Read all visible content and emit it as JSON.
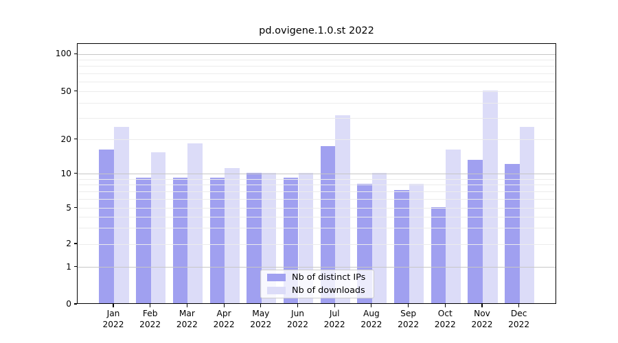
{
  "figure": {
    "title": "pd.ovigene.1.0.st 2022"
  },
  "chart_data": {
    "type": "bar",
    "title": "pd.ovigene.1.0.st 2022",
    "categories": [
      "Jan 2022",
      "Feb 2022",
      "Mar 2022",
      "Apr 2022",
      "May 2022",
      "Jun 2022",
      "Jul 2022",
      "Aug 2022",
      "Sep 2022",
      "Oct 2022",
      "Nov 2022",
      "Dec 2022"
    ],
    "series": [
      {
        "name": "Nb of distinct IPs",
        "color": "#a0a0f0",
        "values": [
          16,
          9,
          9,
          9,
          10,
          9,
          17,
          8,
          7,
          5,
          13,
          12
        ]
      },
      {
        "name": "Nb of downloads",
        "color": "#dcdcf8",
        "values": [
          25,
          15,
          18,
          11,
          10,
          10,
          31,
          10,
          8,
          16,
          50,
          25
        ]
      }
    ],
    "y_axis": {
      "scale": "symlog",
      "tick_values": [
        100,
        50,
        20,
        10,
        5,
        2,
        1,
        0
      ],
      "tick_labels": [
        "100",
        "50",
        "20",
        "10",
        "5",
        "2",
        "1",
        "0"
      ],
      "ylim": [
        0,
        121
      ]
    },
    "x_axis": {
      "tick_labels_line2": "2022"
    },
    "grid": {
      "major_values": [
        1,
        10,
        100
      ],
      "minor_values": [
        2,
        3,
        4,
        5,
        6,
        7,
        8,
        9,
        20,
        30,
        40,
        50,
        60,
        70,
        80,
        90
      ],
      "major_color": "#c6c6c6",
      "minor_color": "#ececec",
      "grid_on_top": true
    },
    "legend": {
      "position": "lower-center",
      "entries": [
        "Nb of distinct IPs",
        "Nb of downloads"
      ]
    }
  },
  "colors": {
    "background": "#ffffff",
    "spine": "#000000",
    "text": "#000000",
    "bar_distinct_ips": "#a0a0f0",
    "bar_downloads": "#dcdcf8"
  }
}
